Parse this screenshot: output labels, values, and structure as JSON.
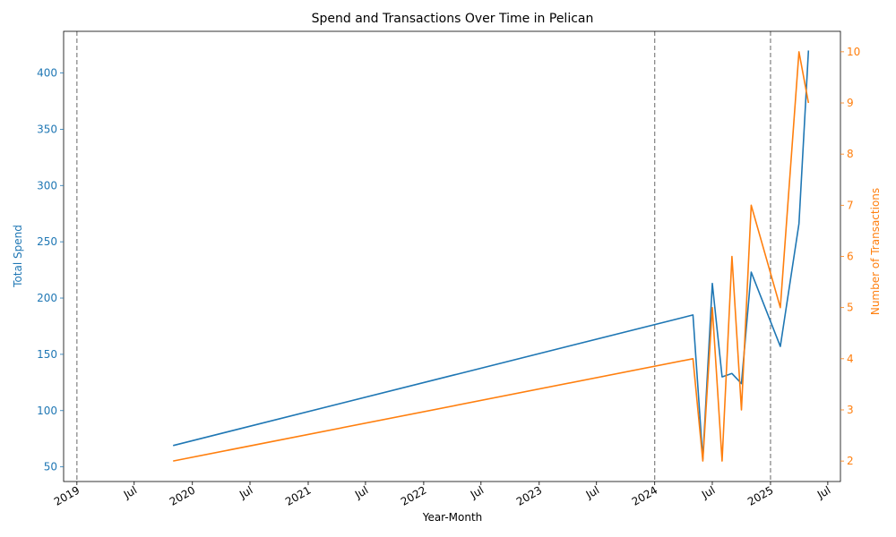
{
  "chart_data": {
    "type": "line",
    "title": "Spend and Transactions Over Time in Pelican",
    "xlabel": "Year-Month",
    "x_tick_labels": [
      "2019",
      "Jul",
      "2020",
      "Jul",
      "2021",
      "Jul",
      "2022",
      "Jul",
      "2023",
      "Jul",
      "2024",
      "Jul",
      "2025",
      "Jul"
    ],
    "x_tick_dates": [
      "2019-01-01",
      "2019-07-01",
      "2020-01-01",
      "2020-07-01",
      "2021-01-01",
      "2021-07-01",
      "2022-01-01",
      "2022-07-01",
      "2023-01-01",
      "2023-07-01",
      "2024-01-01",
      "2024-07-01",
      "2025-01-01",
      "2025-07-01"
    ],
    "xlim": [
      "2018-11-20",
      "2025-08-10"
    ],
    "vlines": [
      "2019-01-01",
      "2024-01-01",
      "2025-01-01"
    ],
    "vline_color": "#808080",
    "y_left": {
      "label": "Total Spend",
      "color": "#1f77b4",
      "lim": [
        37,
        437
      ],
      "ticks": [
        50,
        100,
        150,
        200,
        250,
        300,
        350,
        400
      ]
    },
    "y_right": {
      "label": "Number of Transactions",
      "color": "#ff7f0e",
      "lim": [
        1.6,
        10.4
      ],
      "ticks": [
        2,
        3,
        4,
        5,
        6,
        7,
        8,
        9,
        10
      ]
    },
    "series": [
      {
        "axis": "left",
        "color": "#1f77b4",
        "points": [
          [
            "2019-11-01",
            69
          ],
          [
            "2024-05-01",
            185
          ],
          [
            "2024-06-01",
            57
          ],
          [
            "2024-07-01",
            213
          ],
          [
            "2024-08-01",
            130
          ],
          [
            "2024-09-01",
            133
          ],
          [
            "2024-10-01",
            124
          ],
          [
            "2024-11-01",
            223
          ],
          [
            "2025-02-01",
            157
          ],
          [
            "2025-04-01",
            266
          ],
          [
            "2025-05-01",
            420
          ]
        ]
      },
      {
        "axis": "right",
        "color": "#ff7f0e",
        "points": [
          [
            "2019-11-01",
            2
          ],
          [
            "2024-05-01",
            4
          ],
          [
            "2024-06-01",
            2
          ],
          [
            "2024-07-01",
            5
          ],
          [
            "2024-08-01",
            2
          ],
          [
            "2024-09-01",
            6
          ],
          [
            "2024-10-01",
            3
          ],
          [
            "2024-11-01",
            7
          ],
          [
            "2025-02-01",
            5
          ],
          [
            "2025-04-01",
            10
          ],
          [
            "2025-05-01",
            9
          ]
        ]
      }
    ]
  }
}
